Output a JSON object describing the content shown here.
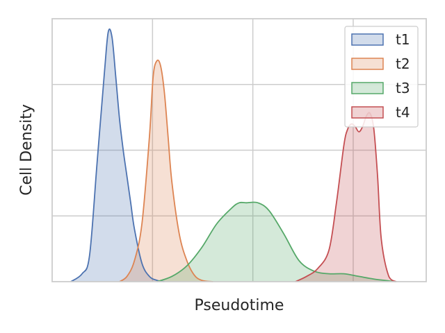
{
  "chart_data": {
    "type": "area",
    "title": "",
    "xlabel": "Pseudotime",
    "ylabel": "Cell Density",
    "xlim": [
      0,
      1
    ],
    "ylim": [
      0,
      1
    ],
    "x_ticks_labeled": false,
    "y_ticks_labeled": false,
    "grid": true,
    "legend_position": "top-right",
    "series": [
      {
        "name": "t1",
        "color": "#4c72b0",
        "x": [
          0.05,
          0.08,
          0.1,
          0.12,
          0.14,
          0.15,
          0.16,
          0.17,
          0.18,
          0.19,
          0.2,
          0.21,
          0.22,
          0.24,
          0.26,
          0.28,
          0.3
        ],
        "y": [
          0.0,
          0.03,
          0.1,
          0.45,
          0.8,
          0.95,
          0.93,
          0.78,
          0.62,
          0.5,
          0.4,
          0.3,
          0.2,
          0.07,
          0.02,
          0.005,
          0.0
        ]
      },
      {
        "name": "t2",
        "color": "#dd8452",
        "x": [
          0.18,
          0.2,
          0.22,
          0.24,
          0.26,
          0.27,
          0.28,
          0.29,
          0.3,
          0.31,
          0.32,
          0.34,
          0.36,
          0.38,
          0.4,
          0.43
        ],
        "y": [
          0.0,
          0.02,
          0.08,
          0.22,
          0.55,
          0.78,
          0.84,
          0.82,
          0.72,
          0.55,
          0.38,
          0.18,
          0.08,
          0.025,
          0.005,
          0.0
        ]
      },
      {
        "name": "t3",
        "color": "#55a868",
        "x": [
          0.28,
          0.32,
          0.36,
          0.4,
          0.44,
          0.48,
          0.5,
          0.52,
          0.55,
          0.58,
          0.62,
          0.66,
          0.7,
          0.74,
          0.78,
          0.82,
          0.86,
          0.9,
          0.92
        ],
        "y": [
          0.0,
          0.02,
          0.06,
          0.13,
          0.22,
          0.28,
          0.3,
          0.3,
          0.3,
          0.27,
          0.18,
          0.08,
          0.04,
          0.03,
          0.03,
          0.02,
          0.01,
          0.003,
          0.0
        ]
      },
      {
        "name": "t4",
        "color": "#c44e52",
        "x": [
          0.65,
          0.68,
          0.71,
          0.74,
          0.76,
          0.78,
          0.79,
          0.8,
          0.81,
          0.82,
          0.83,
          0.84,
          0.85,
          0.86,
          0.87,
          0.88,
          0.9,
          0.92
        ],
        "y": [
          0.0,
          0.02,
          0.05,
          0.12,
          0.3,
          0.52,
          0.58,
          0.6,
          0.59,
          0.57,
          0.59,
          0.63,
          0.64,
          0.58,
          0.4,
          0.16,
          0.02,
          0.0
        ]
      }
    ]
  }
}
